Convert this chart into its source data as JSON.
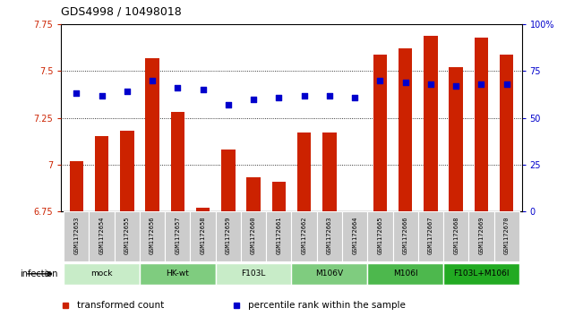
{
  "title": "GDS4998 / 10498018",
  "samples": [
    "GSM1172653",
    "GSM1172654",
    "GSM1172655",
    "GSM1172656",
    "GSM1172657",
    "GSM1172658",
    "GSM1172659",
    "GSM1172660",
    "GSM1172661",
    "GSM1172662",
    "GSM1172663",
    "GSM1172664",
    "GSM1172665",
    "GSM1172666",
    "GSM1172667",
    "GSM1172668",
    "GSM1172669",
    "GSM1172670"
  ],
  "bar_values": [
    7.02,
    7.15,
    7.18,
    7.57,
    7.28,
    6.77,
    7.08,
    6.93,
    6.91,
    7.17,
    7.17,
    6.73,
    7.59,
    7.62,
    7.69,
    7.52,
    7.68,
    7.59
  ],
  "dot_values": [
    63,
    62,
    64,
    70,
    66,
    65,
    57,
    60,
    61,
    62,
    62,
    61,
    70,
    69,
    68,
    67,
    68,
    68
  ],
  "ylim_left": [
    6.75,
    7.75
  ],
  "ylim_right": [
    0,
    100
  ],
  "groups": [
    {
      "label": "mock",
      "start": 0,
      "end": 3,
      "color": "#c8ecc8"
    },
    {
      "label": "HK-wt",
      "start": 3,
      "end": 6,
      "color": "#7fcc7f"
    },
    {
      "label": "F103L",
      "start": 6,
      "end": 9,
      "color": "#c8ecc8"
    },
    {
      "label": "M106V",
      "start": 9,
      "end": 12,
      "color": "#7fcc7f"
    },
    {
      "label": "M106I",
      "start": 12,
      "end": 15,
      "color": "#4db84d"
    },
    {
      "label": "F103L+M106I",
      "start": 15,
      "end": 18,
      "color": "#22aa22"
    }
  ],
  "bar_color": "#cc2200",
  "dot_color": "#0000cc",
  "tick_color_left": "#cc2200",
  "tick_color_right": "#0000cc",
  "yticks_left": [
    6.75,
    7.0,
    7.25,
    7.5,
    7.75
  ],
  "ytick_labels_left": [
    "6.75",
    "7",
    "7.25",
    "7.5",
    "7.75"
  ],
  "yticks_right": [
    0,
    25,
    50,
    75,
    100
  ],
  "ytick_labels_right": [
    "0",
    "25",
    "50",
    "75",
    "100%"
  ],
  "legend_items": [
    {
      "label": "transformed count",
      "color": "#cc2200"
    },
    {
      "label": "percentile rank within the sample",
      "color": "#0000cc"
    }
  ],
  "bar_width": 0.55,
  "sample_bg_color": "#cccccc",
  "base": 6.75
}
